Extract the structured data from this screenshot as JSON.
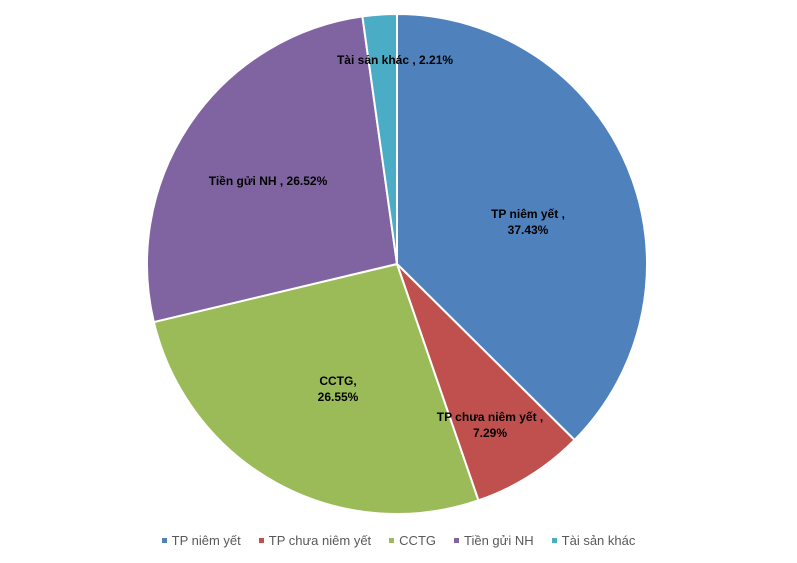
{
  "chart_data": {
    "type": "pie",
    "title": "",
    "start_angle": "12 o'clock, clockwise",
    "slices": [
      {
        "name": "TP niêm yết",
        "value": 37.43,
        "label_lines": [
          "TP niêm yết ,",
          "37.43%"
        ],
        "color": "#4F81BD"
      },
      {
        "name": "TP chưa niêm yết",
        "value": 7.29,
        "label_lines": [
          "TP chưa niêm yết ,",
          "7.29%"
        ],
        "color": "#C0504D"
      },
      {
        "name": "CCTG",
        "value": 26.55,
        "label_lines": [
          "CCTG,",
          "26.55%"
        ],
        "color": "#9BBB59"
      },
      {
        "name": "Tiền gửi NH",
        "value": 26.52,
        "label_lines": [
          "Tiền gửi NH , 26.52%"
        ],
        "color": "#8064A2"
      },
      {
        "name": "Tài sản khác",
        "value": 2.21,
        "label_lines": [
          "Tài sản khác , 2.21%"
        ],
        "color": "#4BACC6"
      }
    ],
    "legend": {
      "placement": "bottom",
      "entries": [
        "TP niêm yết",
        "TP chưa niêm yết",
        "CCTG",
        "Tiền gửi NH",
        "Tài sản khác"
      ]
    }
  }
}
